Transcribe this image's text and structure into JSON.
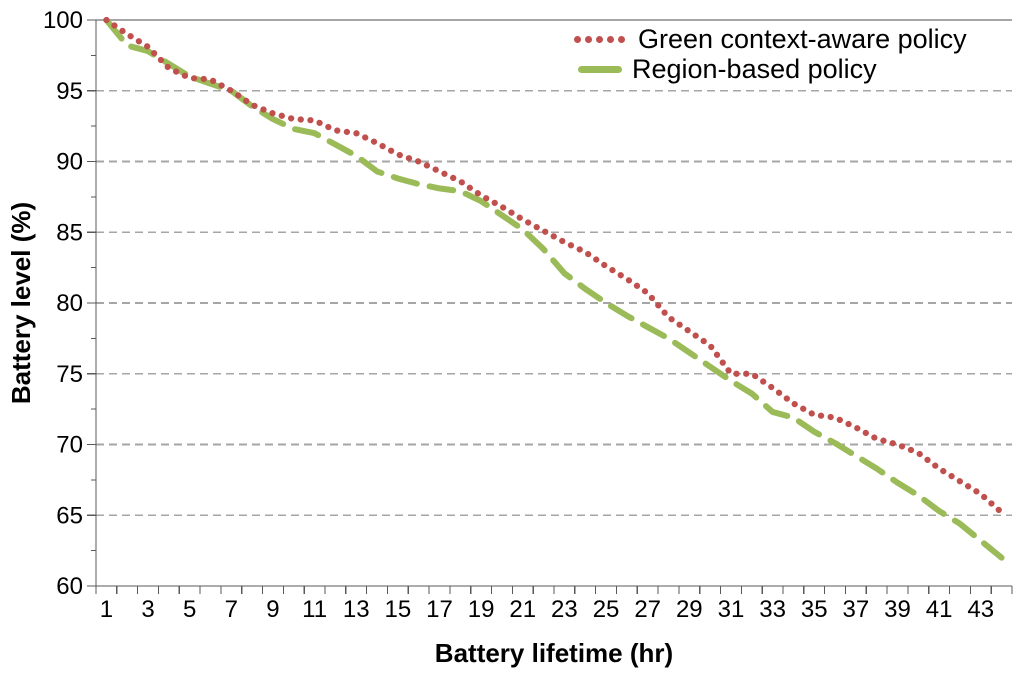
{
  "chart_data": {
    "type": "line",
    "title": "",
    "xlabel": "Battery lifetime (hr)",
    "ylabel": "Battery level (%)",
    "x": [
      1,
      2,
      3,
      4,
      5,
      6,
      7,
      8,
      9,
      10,
      11,
      12,
      13,
      14,
      15,
      16,
      17,
      18,
      19,
      20,
      21,
      22,
      23,
      24,
      25,
      26,
      27,
      28,
      29,
      30,
      31,
      32,
      33,
      34,
      35,
      36,
      37,
      38,
      39,
      40,
      41,
      42,
      43,
      44
    ],
    "series": [
      {
        "name": "Green context-aware policy",
        "color": "#C0504D",
        "line_style": "dotted",
        "values": [
          100,
          99,
          98.1,
          96.6,
          95.9,
          95.8,
          95,
          94,
          93.4,
          93,
          92.9,
          92.2,
          92,
          91.3,
          90.5,
          90,
          89.3,
          88.6,
          87.6,
          86.8,
          85.9,
          85.1,
          84.3,
          83.6,
          82.6,
          81.7,
          80.7,
          79,
          78,
          77,
          75,
          75,
          74,
          72.9,
          72.1,
          71.9,
          71.2,
          70.4,
          70,
          69.4,
          68.3,
          67.4,
          66.5,
          65.2
        ]
      },
      {
        "name": "Region-based policy",
        "color": "#9BBB59",
        "line_style": "dashed",
        "values": [
          100,
          98.2,
          97.8,
          96.9,
          96,
          95.5,
          95,
          93.9,
          93,
          92.3,
          92,
          91.2,
          90.4,
          89.3,
          88.8,
          88.4,
          88.1,
          87.9,
          87.2,
          86.2,
          85.2,
          83.8,
          82.1,
          81,
          80,
          79.1,
          78.3,
          77.5,
          76.5,
          75.5,
          74.5,
          73.6,
          72.3,
          71.9,
          70.9,
          70.1,
          69.2,
          68.3,
          67.3,
          66.4,
          65.3,
          64.4,
          63.2,
          62
        ]
      }
    ],
    "ylim": [
      60,
      100
    ],
    "y_major_tick_step": 5,
    "y_minor_tick_step": 2.5,
    "y_tick_values": [
      60,
      65,
      70,
      75,
      80,
      85,
      90,
      95,
      100
    ],
    "y_tick_labels": [
      "60",
      "65",
      "70",
      "75",
      "80",
      "85",
      "90",
      "95",
      "100"
    ],
    "x_tick_label_values": [
      1,
      3,
      5,
      7,
      9,
      11,
      13,
      15,
      17,
      19,
      21,
      23,
      25,
      27,
      29,
      31,
      33,
      35,
      37,
      39,
      41,
      43
    ],
    "x_tick_labels": [
      "1",
      "3",
      "5",
      "7",
      "9",
      "11",
      "13",
      "15",
      "17",
      "19",
      "21",
      "23",
      "25",
      "27",
      "29",
      "31",
      "33",
      "35",
      "37",
      "39",
      "41",
      "43"
    ],
    "grid": "horizontal-dashed",
    "legend_position": "top-right-inside",
    "colors": {
      "axis": "#595959",
      "grid": "#A6A6A6",
      "background": "#FFFFFF",
      "text": "#000000"
    }
  }
}
